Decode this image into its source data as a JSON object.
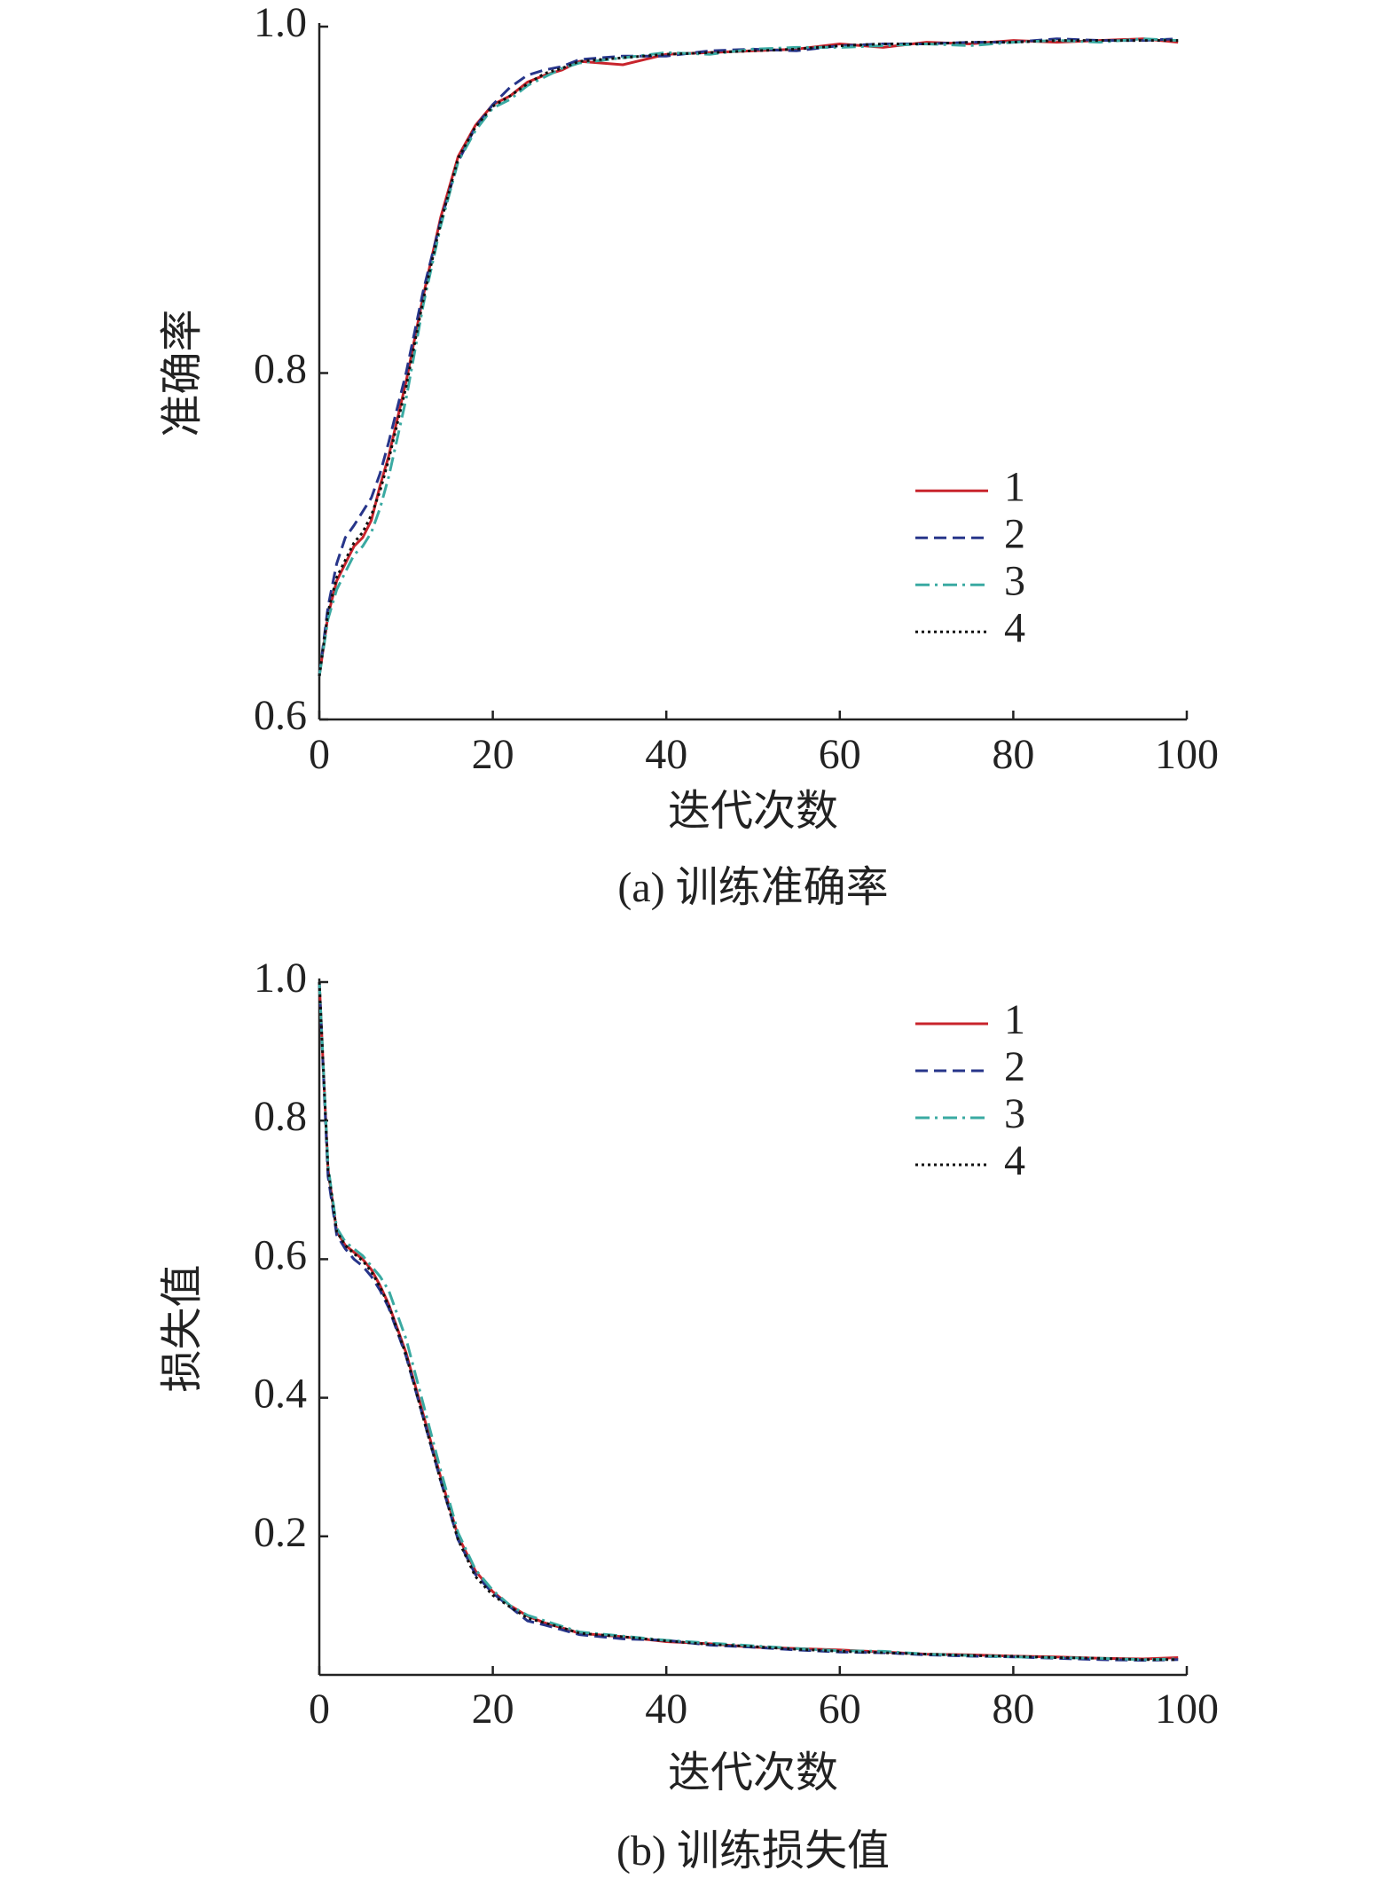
{
  "chart_data": [
    {
      "type": "line",
      "title": "(a) 训练准确率",
      "xlabel": "迭代次数",
      "ylabel": "准确率",
      "x": [
        0,
        1,
        2,
        3,
        4,
        5,
        6,
        7,
        8,
        10,
        12,
        14,
        16,
        18,
        20,
        22,
        24,
        26,
        28,
        30,
        35,
        40,
        45,
        50,
        55,
        60,
        65,
        70,
        75,
        80,
        85,
        90,
        95,
        99
      ],
      "xlim": [
        0,
        100
      ],
      "xticks": [
        0,
        20,
        40,
        60,
        80,
        100
      ],
      "ylim": [
        0.6,
        1
      ],
      "yticks": [
        0.6,
        0.8,
        {
          "value": 1,
          "label": "1.0"
        }
      ],
      "legend": "center right",
      "series": [
        {
          "name": "1",
          "color": "#c8242c",
          "style": "solid",
          "values": [
            0.625,
            0.66,
            0.68,
            0.69,
            0.7,
            0.705,
            0.715,
            0.735,
            0.752,
            0.795,
            0.845,
            0.89,
            0.925,
            0.943,
            0.955,
            0.96,
            0.968,
            0.972,
            0.975,
            0.98,
            0.978,
            0.984,
            0.985,
            0.986,
            0.987,
            0.99,
            0.988,
            0.991,
            0.99,
            0.992,
            0.991,
            0.992,
            0.993,
            0.991
          ]
        },
        {
          "name": "2",
          "color": "#27358a",
          "style": "dashed",
          "values": [
            0.625,
            0.665,
            0.69,
            0.705,
            0.712,
            0.72,
            0.728,
            0.742,
            0.76,
            0.8,
            0.848,
            0.888,
            0.922,
            0.942,
            0.955,
            0.965,
            0.972,
            0.975,
            0.977,
            0.981,
            0.983,
            0.983,
            0.986,
            0.987,
            0.986,
            0.989,
            0.99,
            0.99,
            0.991,
            0.991,
            0.993,
            0.992,
            0.992,
            0.993
          ]
        },
        {
          "name": "3",
          "color": "#3aaaa2",
          "style": "dashdot",
          "values": [
            0.625,
            0.658,
            0.675,
            0.685,
            0.695,
            0.7,
            0.708,
            0.722,
            0.74,
            0.785,
            0.84,
            0.885,
            0.922,
            0.94,
            0.953,
            0.958,
            0.966,
            0.971,
            0.976,
            0.979,
            0.982,
            0.985,
            0.984,
            0.987,
            0.988,
            0.988,
            0.989,
            0.99,
            0.989,
            0.991,
            0.992,
            0.991,
            0.993,
            0.992
          ]
        },
        {
          "name": "4",
          "color": "#111111",
          "style": "dotted",
          "values": [
            0.625,
            0.662,
            0.682,
            0.692,
            0.702,
            0.708,
            0.718,
            0.732,
            0.75,
            0.792,
            0.843,
            0.887,
            0.924,
            0.942,
            0.954,
            0.96,
            0.967,
            0.973,
            0.976,
            0.98,
            0.982,
            0.984,
            0.985,
            0.986,
            0.987,
            0.989,
            0.99,
            0.99,
            0.991,
            0.991,
            0.992,
            0.992,
            0.992,
            0.992
          ]
        }
      ]
    },
    {
      "type": "line",
      "title": "(b) 训练损失值",
      "xlabel": "迭代次数",
      "ylabel": "损失值",
      "x": [
        0,
        1,
        2,
        3,
        4,
        5,
        6,
        7,
        8,
        10,
        12,
        14,
        16,
        18,
        20,
        22,
        24,
        26,
        28,
        30,
        35,
        40,
        45,
        50,
        55,
        60,
        65,
        70,
        75,
        80,
        85,
        90,
        95,
        99
      ],
      "xlim": [
        0,
        100
      ],
      "xticks": [
        0,
        20,
        40,
        60,
        80,
        100
      ],
      "ylim": [
        0,
        1
      ],
      "yticks": [
        0.2,
        0.4,
        0.6,
        0.8,
        {
          "value": 1,
          "label": "1.0"
        }
      ],
      "legend": "upper right",
      "series": [
        {
          "name": "1",
          "color": "#c8242c",
          "style": "solid",
          "values": [
            1.0,
            0.73,
            0.64,
            0.62,
            0.61,
            0.6,
            0.585,
            0.562,
            0.535,
            0.465,
            0.375,
            0.285,
            0.2,
            0.15,
            0.12,
            0.1,
            0.085,
            0.075,
            0.068,
            0.06,
            0.055,
            0.048,
            0.045,
            0.04,
            0.038,
            0.036,
            0.033,
            0.03,
            0.029,
            0.027,
            0.026,
            0.024,
            0.023,
            0.025
          ]
        },
        {
          "name": "2",
          "color": "#27358a",
          "style": "dashed",
          "values": [
            1.0,
            0.72,
            0.635,
            0.615,
            0.6,
            0.59,
            0.575,
            0.555,
            0.53,
            0.46,
            0.37,
            0.28,
            0.195,
            0.145,
            0.118,
            0.098,
            0.078,
            0.072,
            0.065,
            0.058,
            0.052,
            0.05,
            0.043,
            0.04,
            0.036,
            0.033,
            0.032,
            0.029,
            0.027,
            0.026,
            0.024,
            0.022,
            0.021,
            0.022
          ]
        },
        {
          "name": "3",
          "color": "#3aaaa2",
          "style": "dashdot",
          "values": [
            1.0,
            0.735,
            0.645,
            0.625,
            0.615,
            0.605,
            0.59,
            0.575,
            0.555,
            0.485,
            0.39,
            0.295,
            0.205,
            0.152,
            0.122,
            0.1,
            0.086,
            0.078,
            0.07,
            0.062,
            0.056,
            0.05,
            0.046,
            0.042,
            0.038,
            0.035,
            0.034,
            0.03,
            0.028,
            0.026,
            0.025,
            0.024,
            0.022,
            0.023
          ]
        },
        {
          "name": "4",
          "color": "#111111",
          "style": "dotted",
          "values": [
            1.0,
            0.73,
            0.64,
            0.62,
            0.608,
            0.598,
            0.582,
            0.56,
            0.533,
            0.462,
            0.37,
            0.28,
            0.195,
            0.142,
            0.115,
            0.098,
            0.082,
            0.075,
            0.068,
            0.06,
            0.055,
            0.049,
            0.044,
            0.041,
            0.037,
            0.034,
            0.032,
            0.03,
            0.028,
            0.027,
            0.025,
            0.024,
            0.022,
            0.022
          ]
        }
      ]
    }
  ]
}
